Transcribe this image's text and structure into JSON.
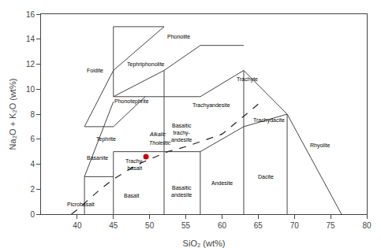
{
  "chart_data": {
    "type": "line",
    "xlabel": "SiO₂ (wt%)",
    "ylabel": "Na₂O + K₂O (wt%)",
    "xlim": [
      35,
      80
    ],
    "ylim": [
      0,
      16
    ],
    "xticks": [
      40,
      45,
      50,
      55,
      60,
      65,
      70,
      75,
      80
    ],
    "yticks": [
      0,
      2,
      4,
      6,
      8,
      10,
      12,
      14,
      16
    ],
    "grid": false,
    "series": [
      {
        "color": "#444444",
        "line_style": "solid",
        "segments": [
          {
            "x": [
              41,
              41
            ],
            "y": [
              0,
              3
            ]
          },
          {
            "x": [
              41,
              45
            ],
            "y": [
              3,
              3
            ]
          },
          {
            "x": [
              45,
              45
            ],
            "y": [
              0,
              5
            ]
          },
          {
            "x": [
              52,
              52
            ],
            "y": [
              0,
              5
            ]
          },
          {
            "x": [
              57,
              57
            ],
            "y": [
              0,
              5
            ]
          },
          {
            "x": [
              63,
              63
            ],
            "y": [
              0,
              7
            ]
          },
          {
            "x": [
              69,
              69
            ],
            "y": [
              0,
              8
            ]
          },
          {
            "x": [
              45,
              52
            ],
            "y": [
              5,
              5
            ]
          },
          {
            "x": [
              52,
              57
            ],
            "y": [
              5,
              5
            ]
          },
          {
            "x": [
              41,
              45
            ],
            "y": [
              3,
              9
            ]
          },
          {
            "x": [
              41,
              45
            ],
            "y": [
              7,
              7
            ]
          },
          {
            "x": [
              45,
              49.4
            ],
            "y": [
              7,
              9.4
            ]
          },
          {
            "x": [
              45,
              52
            ],
            "y": [
              9.4,
              9.4
            ]
          },
          {
            "x": [
              52,
              52
            ],
            "y": [
              5,
              9.4
            ]
          },
          {
            "x": [
              52,
              57
            ],
            "y": [
              9.4,
              9.4
            ]
          },
          {
            "x": [
              57,
              63
            ],
            "y": [
              5,
              7
            ]
          },
          {
            "x": [
              57,
              63
            ],
            "y": [
              9.4,
              11.5
            ]
          },
          {
            "x": [
              63,
              63
            ],
            "y": [
              7,
              11.5
            ]
          },
          {
            "x": [
              63,
              69
            ],
            "y": [
              11.5,
              8.0
            ]
          },
          {
            "x": [
              63,
              69
            ],
            "y": [
              7,
              8.0
            ]
          },
          {
            "x": [
              69,
              76.5
            ],
            "y": [
              8.0,
              0.0
            ]
          },
          {
            "x": [
              45,
              52
            ],
            "y": [
              11.5,
              15.0
            ]
          },
          {
            "x": [
              52,
              57
            ],
            "y": [
              11.5,
              13.5
            ]
          },
          {
            "x": [
              52,
              52
            ],
            "y": [
              9.4,
              11.5
            ]
          },
          {
            "x": [
              57,
              63
            ],
            "y": [
              13.5,
              13.5
            ]
          },
          {
            "x": [
              45,
              52
            ],
            "y": [
              15.0,
              15.0
            ]
          },
          {
            "x": [
              41,
              45
            ],
            "y": [
              7,
              11.5
            ]
          },
          {
            "x": [
              45,
              45
            ],
            "y": [
              9.4,
              15.0
            ]
          },
          {
            "x": [
              45,
              52
            ],
            "y": [
              9.4,
              11.5
            ]
          }
        ]
      },
      {
        "color": "#222222",
        "line_style": "dashed",
        "x": [
          39.2,
          40.0,
          43.2,
          45.0,
          48.4,
          52.5,
          55.0,
          60.0,
          65.0
        ],
        "values": [
          0.0,
          0.35,
          2.0,
          2.8,
          4.0,
          5.0,
          5.4,
          6.4,
          8.8
        ]
      },
      {
        "type": "scatter",
        "color": "#cc0000",
        "marker": "circle",
        "x": [
          49.5
        ],
        "values": [
          4.6
        ]
      }
    ],
    "annotations": [
      {
        "text": "Picrobasalt",
        "x": 40.5,
        "y": 0.8
      },
      {
        "text": "Basalt",
        "x": 47.5,
        "y": 1.5
      },
      {
        "text": "Basanite",
        "x": 42.8,
        "y": 4.5
      },
      {
        "text": "Trachy-\nbasalt",
        "x": 48.0,
        "y": 4.0
      },
      {
        "text": "Tephrite",
        "x": 44.0,
        "y": 6.0
      },
      {
        "text": "Phonotephrite",
        "x": 47.5,
        "y": 9.0
      },
      {
        "text": "Foidite",
        "x": 42.5,
        "y": 11.5
      },
      {
        "text": "Tephriphonolite",
        "x": 49.5,
        "y": 12.0
      },
      {
        "text": "Phonolite",
        "x": 54.0,
        "y": 14.2
      },
      {
        "text": "Basaltic\nandesite",
        "x": 54.5,
        "y": 1.8
      },
      {
        "text": "Andesite",
        "x": 60.0,
        "y": 2.5
      },
      {
        "text": "Dacite",
        "x": 66.0,
        "y": 3.0
      },
      {
        "text": "Rhyolite",
        "x": 73.5,
        "y": 5.5
      },
      {
        "text": "Basaltic\ntrachy-\nandesite",
        "x": 54.5,
        "y": 6.5
      },
      {
        "text": "Trachyandesite",
        "x": 58.5,
        "y": 8.7
      },
      {
        "text": "Trachyte",
        "x": 63.5,
        "y": 10.8
      },
      {
        "text": "Trachydacite",
        "x": 66.5,
        "y": 7.5
      },
      {
        "text": "Alkalic",
        "x": 53.5,
        "y": 6.4,
        "style": "italic"
      },
      {
        "text": "Tholeiitic",
        "x": 54.2,
        "y": 5.7,
        "style": "italic"
      }
    ]
  }
}
